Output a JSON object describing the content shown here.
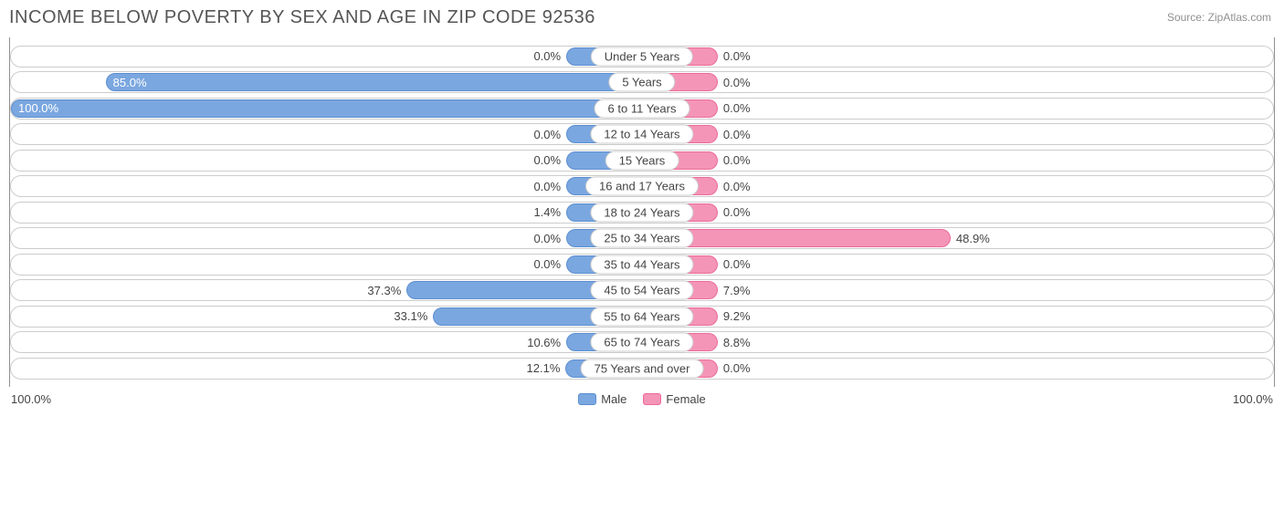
{
  "title": "INCOME BELOW POVERTY BY SEX AND AGE IN ZIP CODE 92536",
  "source": "Source: ZipAtlas.com",
  "axis": {
    "left": "100.0%",
    "right": "100.0%"
  },
  "legend": {
    "male": "Male",
    "female": "Female"
  },
  "colors": {
    "male_fill": "#7ba7e0",
    "male_border": "#5b8ed0",
    "female_fill": "#f495b7",
    "female_border": "#ec6a99",
    "label_text_light": "#ffffff",
    "label_text_dark": "#444444",
    "track_border": "#cccccc",
    "min_bar_pct": 12
  },
  "rows": [
    {
      "category": "Under 5 Years",
      "male": 0.0,
      "female": 0.0
    },
    {
      "category": "5 Years",
      "male": 85.0,
      "female": 0.0
    },
    {
      "category": "6 to 11 Years",
      "male": 100.0,
      "female": 0.0
    },
    {
      "category": "12 to 14 Years",
      "male": 0.0,
      "female": 0.0
    },
    {
      "category": "15 Years",
      "male": 0.0,
      "female": 0.0
    },
    {
      "category": "16 and 17 Years",
      "male": 0.0,
      "female": 0.0
    },
    {
      "category": "18 to 24 Years",
      "male": 1.4,
      "female": 0.0
    },
    {
      "category": "25 to 34 Years",
      "male": 0.0,
      "female": 48.9
    },
    {
      "category": "35 to 44 Years",
      "male": 0.0,
      "female": 0.0
    },
    {
      "category": "45 to 54 Years",
      "male": 37.3,
      "female": 7.9
    },
    {
      "category": "55 to 64 Years",
      "male": 33.1,
      "female": 9.2
    },
    {
      "category": "65 to 74 Years",
      "male": 10.6,
      "female": 8.8
    },
    {
      "category": "75 Years and over",
      "male": 12.1,
      "female": 0.0
    }
  ]
}
